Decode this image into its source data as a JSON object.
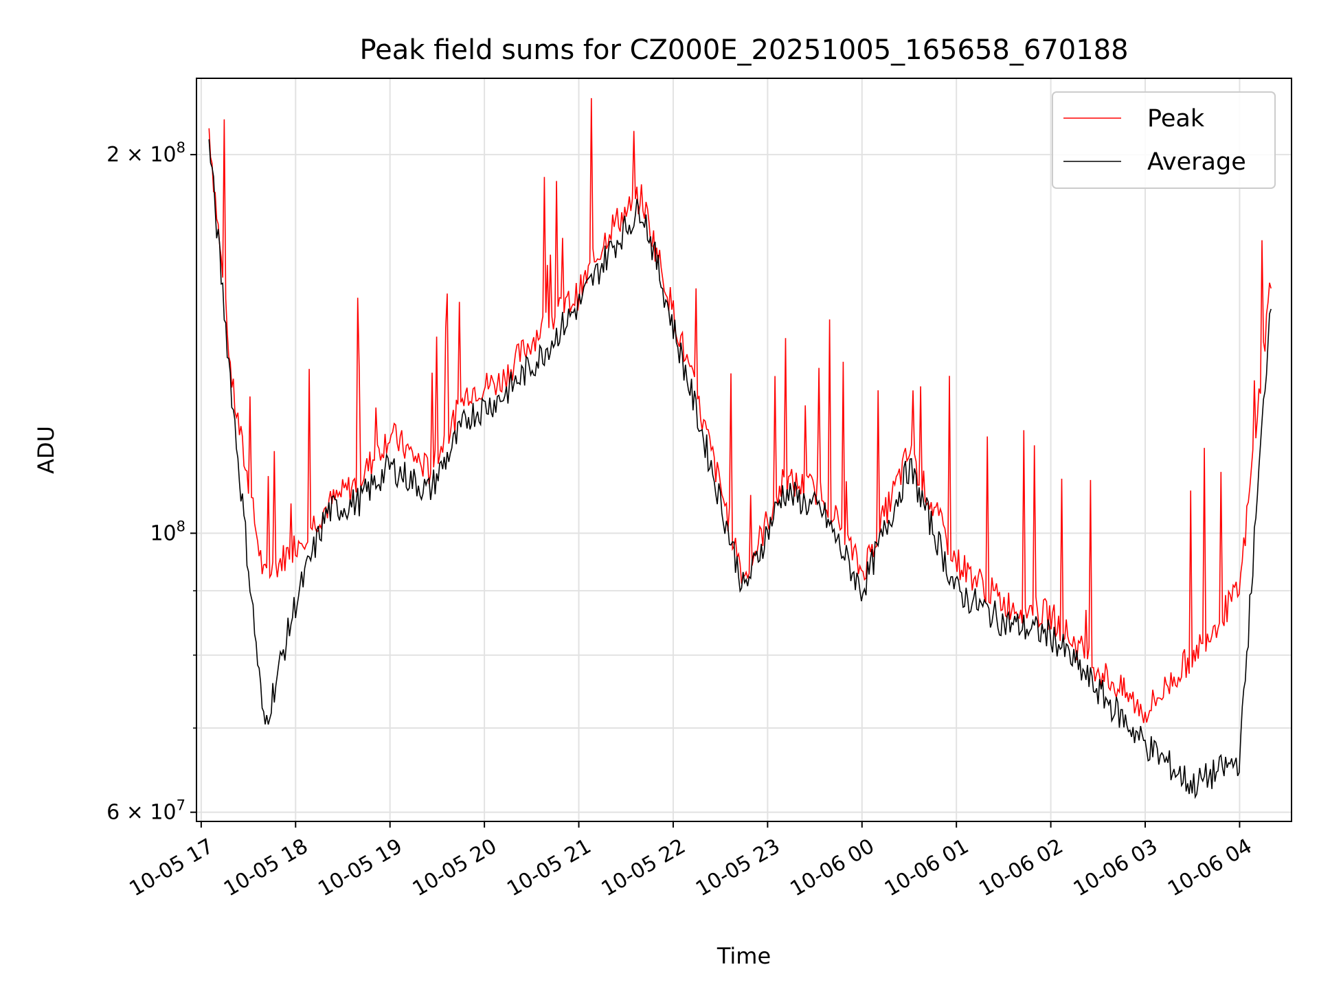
{
  "chart_data": {
    "type": "line",
    "title": "Peak field sums for CZ000E_20251005_165658_670188",
    "xlabel": "Time",
    "ylabel": "ADU",
    "y_scale": "log",
    "ylim": [
      59000000,
      230000000
    ],
    "xlim": [
      "2025-10-05 16:57",
      "2025-10-06 04:33"
    ],
    "x_tick_labels": [
      "10-05 17",
      "10-05 18",
      "10-05 19",
      "10-05 20",
      "10-05 21",
      "10-05 22",
      "10-05 23",
      "10-06 00",
      "10-06 01",
      "10-06 02",
      "10-06 03",
      "10-06 04"
    ],
    "x_tick_values": [
      "2025-10-05 17:00",
      "2025-10-05 18:00",
      "2025-10-05 19:00",
      "2025-10-05 20:00",
      "2025-10-05 21:00",
      "2025-10-05 22:00",
      "2025-10-05 23:00",
      "2025-10-06 00:00",
      "2025-10-06 01:00",
      "2025-10-06 02:00",
      "2025-10-06 03:00",
      "2025-10-06 04:00"
    ],
    "y_major_ticks": [
      {
        "value": 60000000,
        "mantissa": "6",
        "exponent": "7"
      },
      {
        "value": 100000000,
        "mantissa": "",
        "exponent": "8"
      },
      {
        "value": 200000000,
        "mantissa": "2",
        "exponent": "8"
      }
    ],
    "y_minor_gridlines": [
      70000000,
      80000000,
      90000000
    ],
    "grid": true,
    "legend_position": "top-right",
    "series": [
      {
        "name": "Peak",
        "color": "#ff0000",
        "x": [
          "2025-10-05 17:05",
          "2025-10-05 17:20",
          "2025-10-05 17:40",
          "2025-10-05 18:00",
          "2025-10-05 18:20",
          "2025-10-05 18:40",
          "2025-10-05 19:00",
          "2025-10-05 19:25",
          "2025-10-05 19:50",
          "2025-10-05 20:10",
          "2025-10-05 20:35",
          "2025-10-05 21:00",
          "2025-10-05 21:20",
          "2025-10-05 21:40",
          "2025-10-05 22:00",
          "2025-10-05 22:25",
          "2025-10-05 22:45",
          "2025-10-05 23:10",
          "2025-10-05 23:35",
          "2025-10-06 00:00",
          "2025-10-06 00:30",
          "2025-10-06 01:00",
          "2025-10-06 01:30",
          "2025-10-06 02:00",
          "2025-10-06 02:30",
          "2025-10-06 03:00",
          "2025-10-06 03:30",
          "2025-10-06 04:00",
          "2025-10-06 04:20"
        ],
        "y": [
          210000000,
          130000000,
          92000000,
          98000000,
          105000000,
          110000000,
          120000000,
          112000000,
          130000000,
          132000000,
          145000000,
          155000000,
          175000000,
          185000000,
          150000000,
          115000000,
          92000000,
          110000000,
          108000000,
          93000000,
          116000000,
          95000000,
          88000000,
          86000000,
          78000000,
          72000000,
          80000000,
          90000000,
          160000000
        ]
      },
      {
        "name": "Average",
        "color": "#000000",
        "x": [
          "2025-10-05 17:05",
          "2025-10-05 17:20",
          "2025-10-05 17:40",
          "2025-10-05 18:00",
          "2025-10-05 18:20",
          "2025-10-05 18:40",
          "2025-10-05 19:00",
          "2025-10-05 19:25",
          "2025-10-05 19:50",
          "2025-10-05 20:10",
          "2025-10-05 20:35",
          "2025-10-05 21:00",
          "2025-10-05 21:20",
          "2025-10-05 21:40",
          "2025-10-05 22:00",
          "2025-10-05 22:25",
          "2025-10-05 22:45",
          "2025-10-05 23:10",
          "2025-10-05 23:35",
          "2025-10-06 00:00",
          "2025-10-06 00:30",
          "2025-10-06 01:00",
          "2025-10-06 01:30",
          "2025-10-06 02:00",
          "2025-10-06 02:30",
          "2025-10-06 03:00",
          "2025-10-06 03:30",
          "2025-10-06 04:00",
          "2025-10-06 04:20"
        ],
        "y": [
          205000000,
          127000000,
          70000000,
          88000000,
          104000000,
          106000000,
          113000000,
          108000000,
          124000000,
          128000000,
          138000000,
          152000000,
          168000000,
          182000000,
          146000000,
          112000000,
          90000000,
          108000000,
          104000000,
          90000000,
          113000000,
          90000000,
          85000000,
          83000000,
          75000000,
          68000000,
          63000000,
          66000000,
          155000000
        ]
      }
    ]
  }
}
